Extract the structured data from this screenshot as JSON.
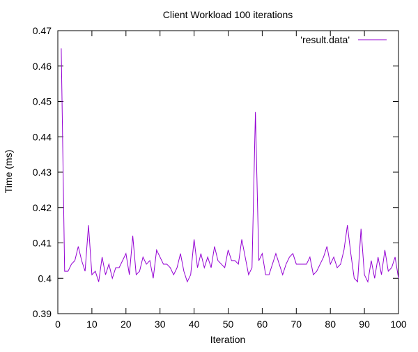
{
  "chart_data": {
    "type": "line",
    "title": "Client Workload 100 iterations",
    "xlabel": "Iteration",
    "ylabel": "Time (ms)",
    "xlim": [
      0,
      100
    ],
    "ylim": [
      0.39,
      0.47
    ],
    "x_ticks": [
      0,
      10,
      20,
      30,
      40,
      50,
      60,
      70,
      80,
      90,
      100
    ],
    "y_ticks": [
      0.39,
      0.4,
      0.41,
      0.42,
      0.43,
      0.44,
      0.45,
      0.46,
      0.47
    ],
    "x_tick_labels": [
      "0",
      "10",
      "20",
      "30",
      "40",
      "50",
      "60",
      "70",
      "80",
      "90",
      "100"
    ],
    "y_tick_labels": [
      "0.39",
      "0.4",
      "0.41",
      "0.42",
      "0.43",
      "0.44",
      "0.45",
      "0.46",
      "0.47"
    ],
    "grid": false,
    "legend_position": "top-right",
    "series": [
      {
        "name": "'result.data'",
        "color": "#9400d3",
        "x": [
          1,
          2,
          3,
          4,
          5,
          6,
          7,
          8,
          9,
          10,
          11,
          12,
          13,
          14,
          15,
          16,
          17,
          18,
          19,
          20,
          21,
          22,
          23,
          24,
          25,
          26,
          27,
          28,
          29,
          30,
          31,
          32,
          33,
          34,
          35,
          36,
          37,
          38,
          39,
          40,
          41,
          42,
          43,
          44,
          45,
          46,
          47,
          48,
          49,
          50,
          51,
          52,
          53,
          54,
          55,
          56,
          57,
          58,
          59,
          60,
          61,
          62,
          63,
          64,
          65,
          66,
          67,
          68,
          69,
          70,
          71,
          72,
          73,
          74,
          75,
          76,
          77,
          78,
          79,
          80,
          81,
          82,
          83,
          84,
          85,
          86,
          87,
          88,
          89,
          90,
          91,
          92,
          93,
          94,
          95,
          96,
          97,
          98,
          99,
          100
        ],
        "y": [
          0.465,
          0.402,
          0.402,
          0.404,
          0.405,
          0.409,
          0.405,
          0.402,
          0.415,
          0.401,
          0.402,
          0.399,
          0.406,
          0.401,
          0.404,
          0.4,
          0.403,
          0.403,
          0.405,
          0.407,
          0.401,
          0.412,
          0.401,
          0.402,
          0.406,
          0.404,
          0.405,
          0.4,
          0.408,
          0.406,
          0.404,
          0.404,
          0.403,
          0.401,
          0.403,
          0.407,
          0.402,
          0.399,
          0.401,
          0.411,
          0.403,
          0.407,
          0.403,
          0.406,
          0.403,
          0.409,
          0.405,
          0.404,
          0.403,
          0.408,
          0.405,
          0.405,
          0.404,
          0.411,
          0.406,
          0.401,
          0.403,
          0.447,
          0.405,
          0.407,
          0.401,
          0.401,
          0.404,
          0.407,
          0.404,
          0.401,
          0.404,
          0.406,
          0.407,
          0.404,
          0.404,
          0.404,
          0.404,
          0.406,
          0.401,
          0.402,
          0.404,
          0.406,
          0.409,
          0.404,
          0.406,
          0.403,
          0.404,
          0.408,
          0.415,
          0.407,
          0.4,
          0.399,
          0.414,
          0.401,
          0.399,
          0.405,
          0.4,
          0.406,
          0.401,
          0.408,
          0.402,
          0.403,
          0.406,
          0.4
        ]
      }
    ]
  }
}
